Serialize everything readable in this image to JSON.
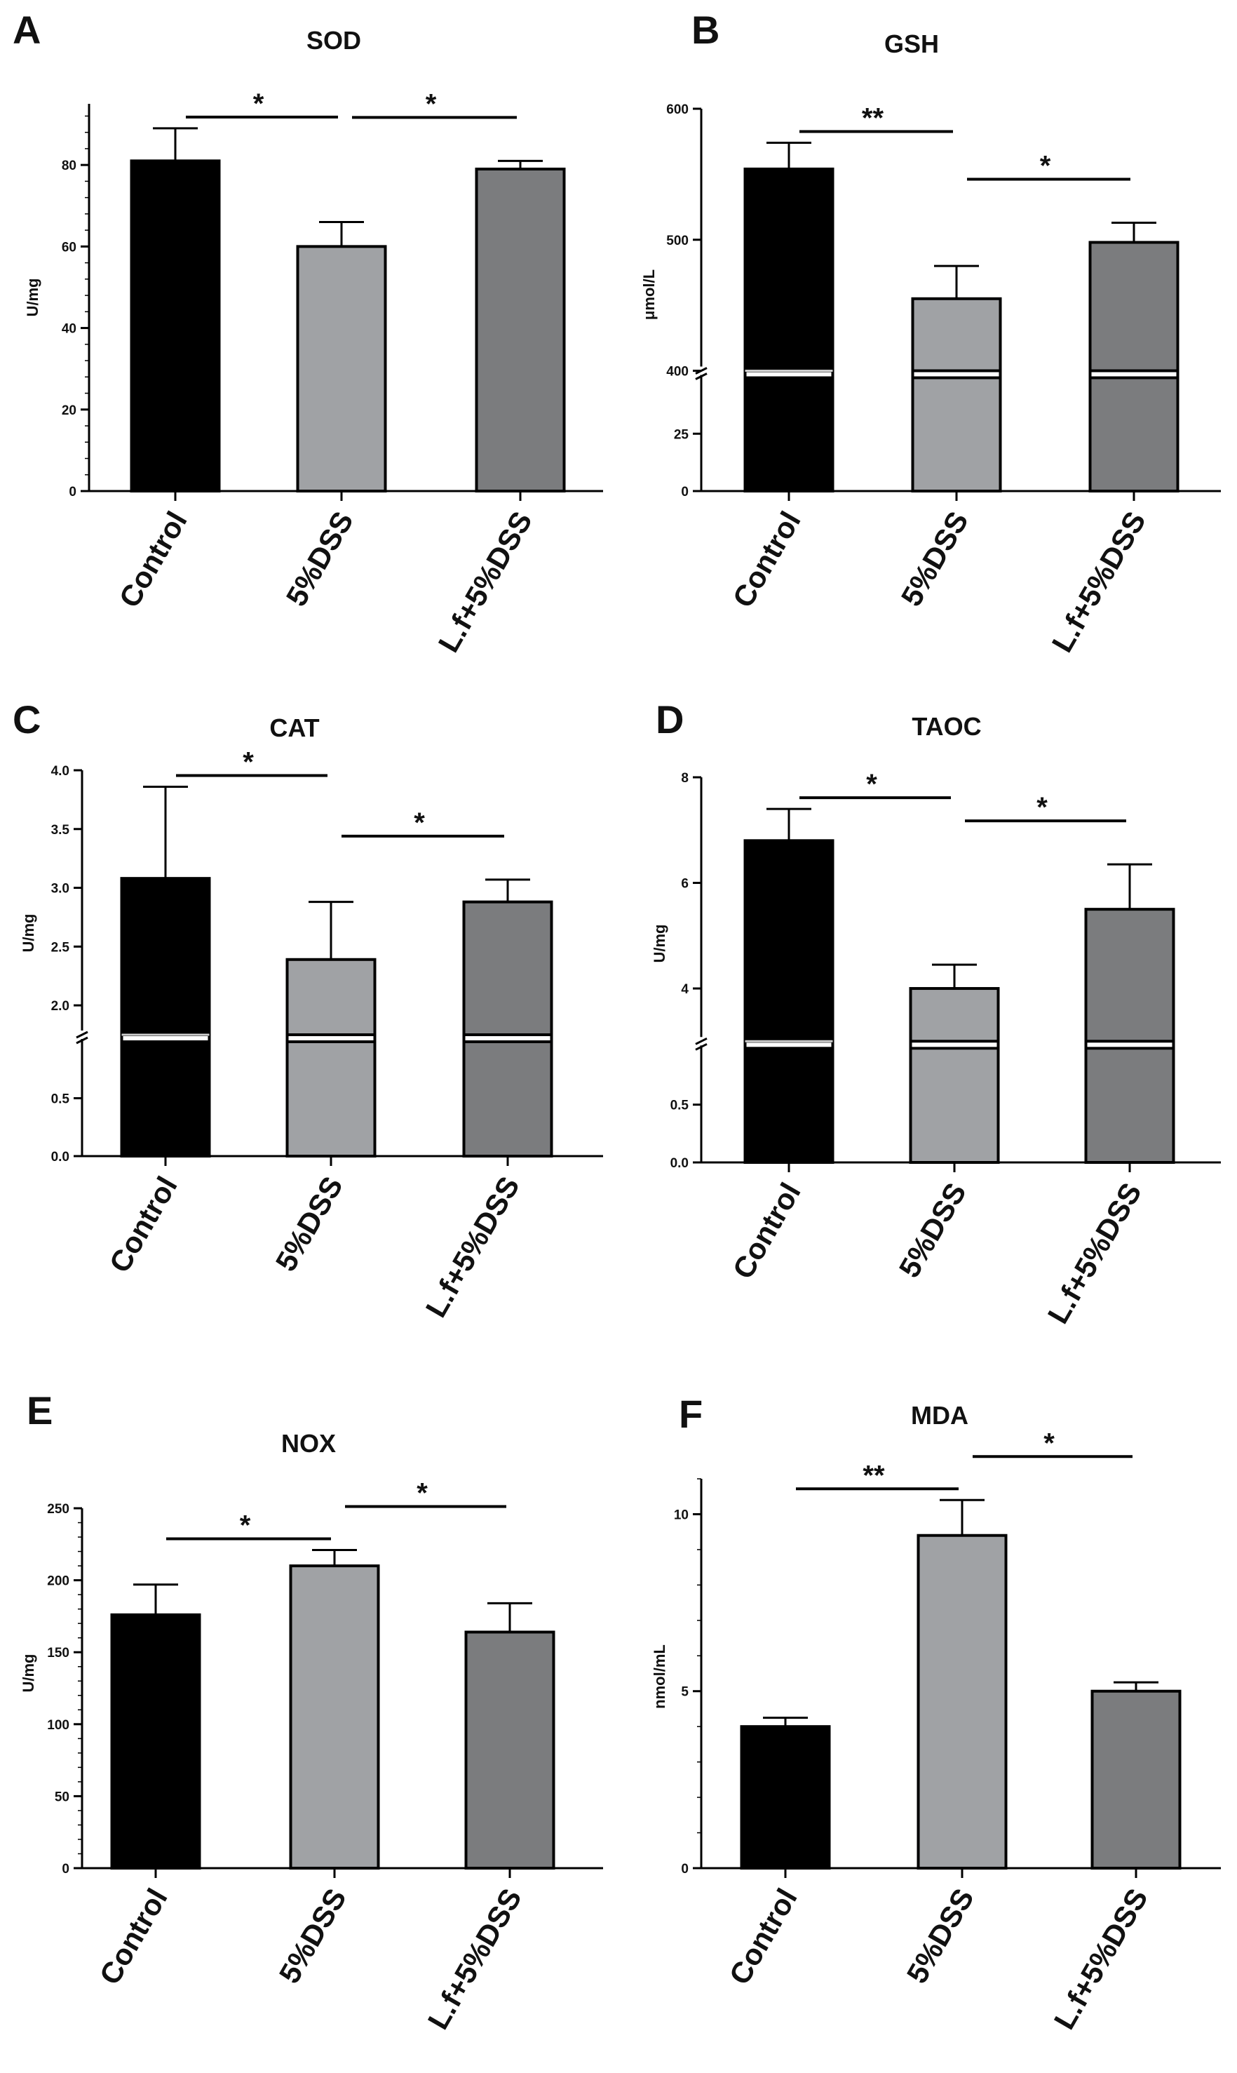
{
  "chart_data": [
    {
      "panel": "A",
      "title": "SOD",
      "type": "bar",
      "ylabel": "U/mg",
      "categories": [
        "Control",
        "5%DSS",
        "L.f+5%DSS"
      ],
      "values": [
        81,
        60,
        79
      ],
      "errors": [
        8,
        6,
        2
      ],
      "colors": [
        "#000000",
        "#a0a2a5",
        "#7b7c7e"
      ],
      "ylim": [
        0,
        95
      ],
      "yticks": [
        0,
        20,
        40,
        60,
        80
      ],
      "yticklabels": [
        "0",
        "20",
        "40",
        "60",
        "80"
      ],
      "significance": [
        {
          "from": 0,
          "to": 1,
          "label": "*"
        },
        {
          "from": 1,
          "to": 2,
          "label": "*"
        }
      ]
    },
    {
      "panel": "B",
      "title": "GSH",
      "type": "bar",
      "ylabel": "μmol/L",
      "categories": [
        "Control",
        "5%DSS",
        "L.f+5%DSS"
      ],
      "values": [
        554,
        455,
        498
      ],
      "errors": [
        20,
        25,
        15
      ],
      "colors": [
        "#000000",
        "#a0a2a5",
        "#7b7c7e"
      ],
      "broken_axis": {
        "lower": [
          0,
          50
        ],
        "upper": [
          400,
          600
        ]
      },
      "yticks_lower": [
        0,
        25
      ],
      "yticklabels_lower": [
        "0",
        "25"
      ],
      "yticks_upper": [
        400,
        500,
        600
      ],
      "yticklabels_upper": [
        "400",
        "500",
        "600"
      ],
      "significance": [
        {
          "from": 0,
          "to": 1,
          "label": "**"
        },
        {
          "from": 1,
          "to": 2,
          "label": "*"
        }
      ]
    },
    {
      "panel": "C",
      "title": "CAT",
      "type": "bar",
      "ylabel": "U/mg",
      "categories": [
        "Control",
        "5%DSS",
        "L.f+5%DSS"
      ],
      "values": [
        3.08,
        2.39,
        2.88
      ],
      "errors": [
        0.78,
        0.49,
        0.19
      ],
      "colors": [
        "#000000",
        "#a0a2a5",
        "#7b7c7e"
      ],
      "broken_axis": {
        "lower": [
          0,
          1.0
        ],
        "upper": [
          1.75,
          4.0
        ]
      },
      "yticks_lower": [
        0,
        0.5
      ],
      "yticklabels_lower": [
        "0.0",
        "0.5"
      ],
      "yticks_upper": [
        2.0,
        2.5,
        3.0,
        3.5,
        4.0
      ],
      "yticklabels_upper": [
        "2.0",
        "2.5",
        "3.0",
        "3.5",
        "4.0"
      ],
      "significance": [
        {
          "from": 0,
          "to": 1,
          "label": "*"
        },
        {
          "from": 1,
          "to": 2,
          "label": "*"
        }
      ]
    },
    {
      "panel": "D",
      "title": "TAOC",
      "type": "bar",
      "ylabel": "U/mg",
      "categories": [
        "Control",
        "5%DSS",
        "L.f+5%DSS"
      ],
      "values": [
        6.8,
        4.0,
        5.5
      ],
      "errors": [
        0.6,
        0.45,
        0.85
      ],
      "colors": [
        "#000000",
        "#a0a2a5",
        "#7b7c7e"
      ],
      "broken_axis": {
        "lower": [
          0,
          1.0
        ],
        "upper": [
          3.0,
          8.0
        ]
      },
      "yticks_lower": [
        0,
        0.5
      ],
      "yticklabels_lower": [
        "0.0",
        "0.5"
      ],
      "yticks_upper": [
        4,
        6,
        8
      ],
      "yticklabels_upper": [
        "4",
        "6",
        "8"
      ],
      "significance": [
        {
          "from": 0,
          "to": 1,
          "label": "*"
        },
        {
          "from": 1,
          "to": 2,
          "label": "*"
        }
      ]
    },
    {
      "panel": "E",
      "title": "NOX",
      "type": "bar",
      "ylabel": "U/mg",
      "categories": [
        "Control",
        "5%DSS",
        "L.f+5%DSS"
      ],
      "values": [
        176,
        210,
        164
      ],
      "errors": [
        21,
        11,
        20
      ],
      "colors": [
        "#000000",
        "#a0a2a5",
        "#7b7c7e"
      ],
      "ylim": [
        0,
        250
      ],
      "yticks": [
        0,
        50,
        100,
        150,
        200,
        250
      ],
      "yticklabels": [
        "0",
        "50",
        "100",
        "150",
        "200",
        "250"
      ],
      "significance": [
        {
          "from": 0,
          "to": 1,
          "label": "*"
        },
        {
          "from": 1,
          "to": 2,
          "label": "*"
        }
      ]
    },
    {
      "panel": "F",
      "title": "MDA",
      "type": "bar",
      "ylabel": "nmol/mL",
      "categories": [
        "Control",
        "5%DSS",
        "L.f+5%DSS"
      ],
      "values": [
        4.0,
        9.4,
        5.0
      ],
      "errors": [
        0.25,
        1.0,
        0.25
      ],
      "colors": [
        "#000000",
        "#a0a2a5",
        "#7b7c7e"
      ],
      "ylim": [
        0,
        11
      ],
      "yticks": [
        0,
        5,
        10
      ],
      "yticklabels": [
        "0",
        "5",
        "10"
      ],
      "significance": [
        {
          "from": 0,
          "to": 1,
          "label": "**"
        },
        {
          "from": 1,
          "to": 2,
          "label": "*"
        }
      ]
    }
  ]
}
